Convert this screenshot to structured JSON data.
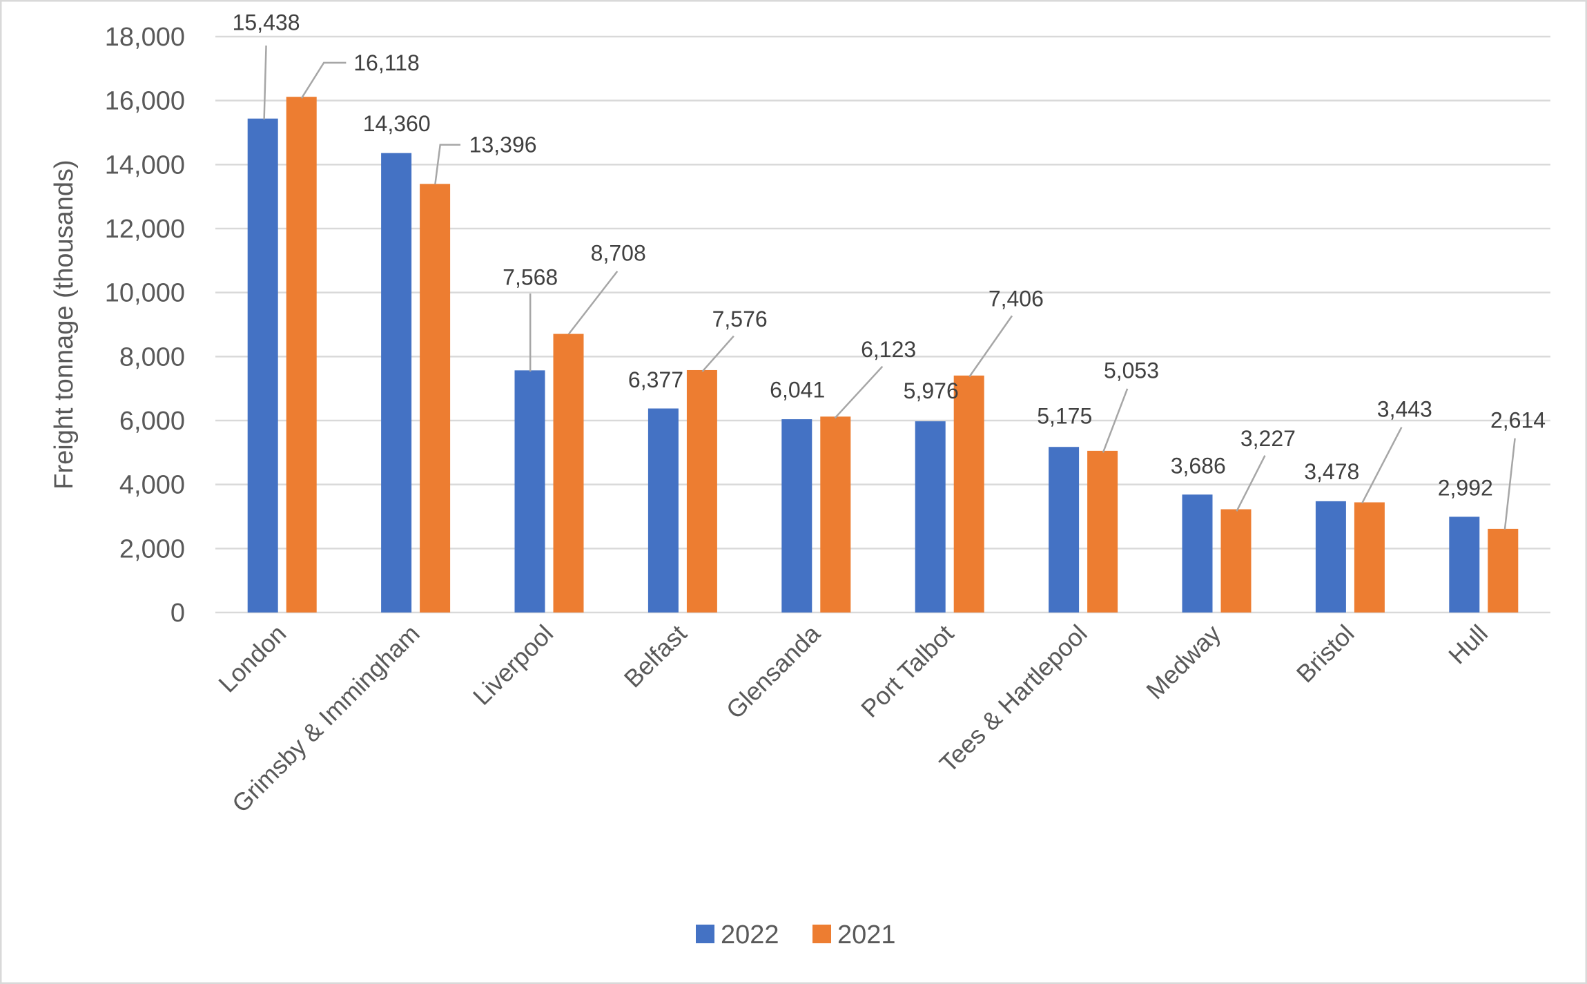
{
  "chart_data": {
    "type": "bar",
    "title": "",
    "xlabel": "",
    "ylabel": "Freight tonnage (thousands)",
    "ylim": [
      0,
      18000
    ],
    "yticks": [
      "0",
      "2,000",
      "4,000",
      "6,000",
      "8,000",
      "10,000",
      "12,000",
      "14,000",
      "16,000",
      "18,000"
    ],
    "grid": true,
    "legend_position": "bottom",
    "categories": [
      "London",
      "Grimsby & Immingham",
      "Liverpool",
      "Belfast",
      "Glensanda",
      "Port Talbot",
      "Tees & Hartlepool",
      "Medway",
      "Bristol",
      "Hull"
    ],
    "series": [
      {
        "name": "2022",
        "color": "#4472C4",
        "values": [
          15438,
          14360,
          7568,
          6377,
          6041,
          5976,
          5175,
          3686,
          3478,
          2992
        ],
        "labels": [
          "15,438",
          "14,360",
          "7,568",
          "6,377",
          "6,041",
          "5,976",
          "5,175",
          "3,686",
          "3,478",
          "2,992"
        ]
      },
      {
        "name": "2021",
        "color": "#ED7D31",
        "values": [
          16118,
          13396,
          8708,
          7576,
          6123,
          7406,
          5053,
          3227,
          3443,
          2614
        ],
        "labels": [
          "16,118",
          "13,396",
          "8,708",
          "7,576",
          "6,123",
          "7,406",
          "5,053",
          "3,227",
          "3,443",
          "2,614"
        ]
      }
    ]
  }
}
